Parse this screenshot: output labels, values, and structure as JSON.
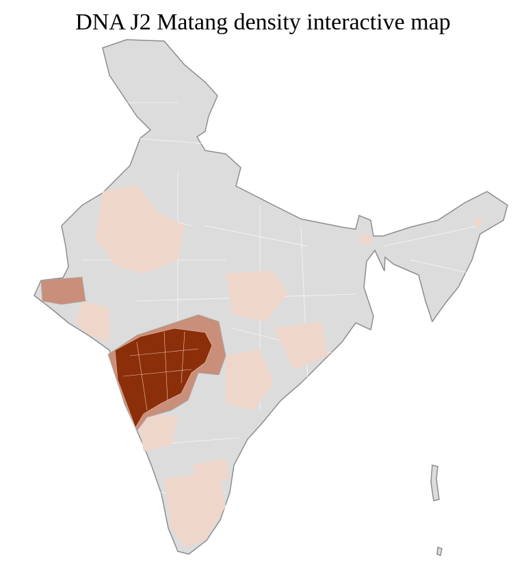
{
  "title": "DNA J2 Matang density interactive map"
}
